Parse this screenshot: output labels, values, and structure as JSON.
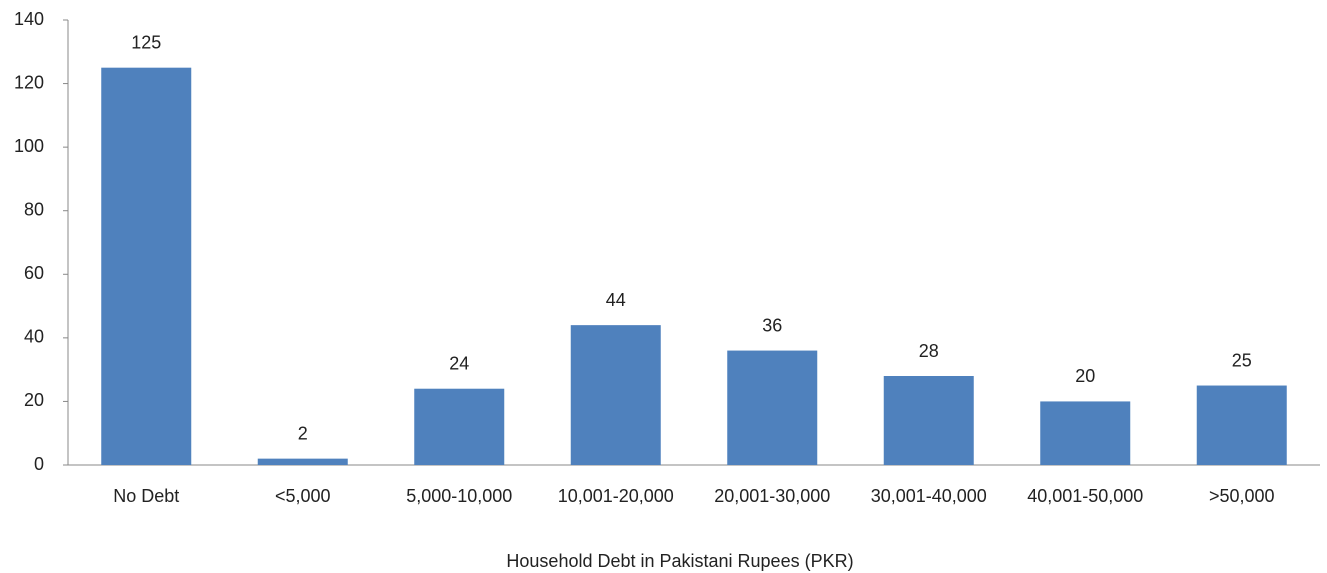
{
  "chart_data": {
    "type": "bar",
    "x_label": "Household Debt in Pakistani Rupees (PKR)",
    "categories": [
      "No Debt",
      "<5,000",
      "5,000-10,000",
      "10,001-20,000",
      "20,001-30,000",
      "30,001-40,000",
      "40,001-50,000",
      ">50,000"
    ],
    "values": [
      125,
      2,
      24,
      44,
      36,
      28,
      20,
      25
    ],
    "color": "#4f81bd",
    "ylim": [
      0,
      140
    ],
    "yticks": [
      0,
      20,
      40,
      60,
      80,
      100,
      120,
      140
    ],
    "grid": false
  }
}
